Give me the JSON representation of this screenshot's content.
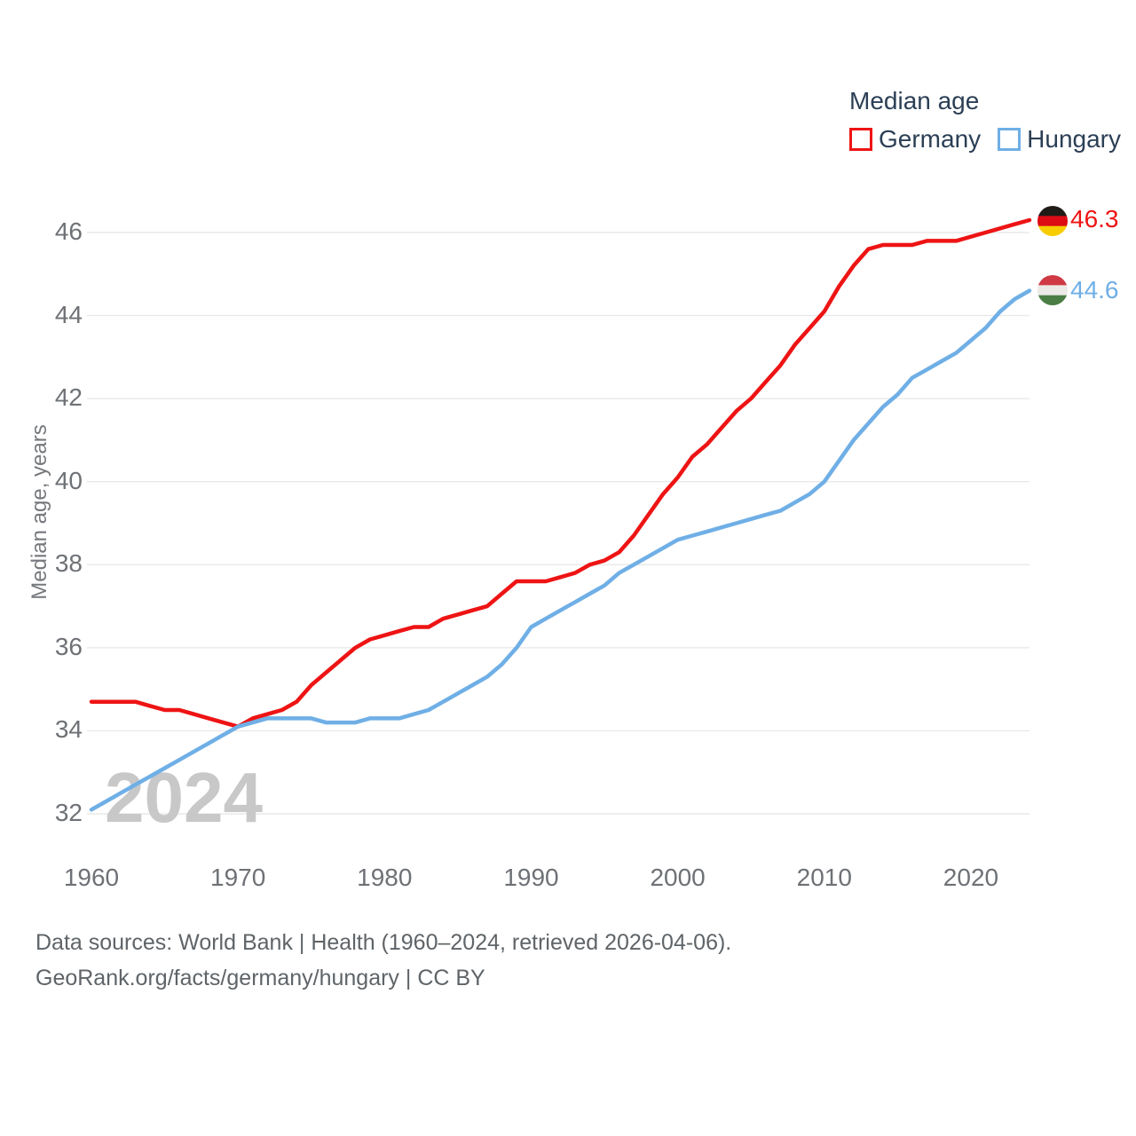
{
  "chart_data": {
    "type": "line",
    "title": "Median age",
    "ylabel": "Median age, years",
    "watermark": "2024",
    "grid": true,
    "grid_color": "#e9e9e9",
    "legend_position": "top-right",
    "xlim": [
      1960,
      2024
    ],
    "ylim": [
      32,
      46
    ],
    "x_ticks": [
      1960,
      1970,
      1980,
      1990,
      2000,
      2010,
      2020
    ],
    "y_ticks": [
      32,
      34,
      36,
      38,
      40,
      42,
      44,
      46
    ],
    "x": [
      1960,
      1961,
      1962,
      1963,
      1964,
      1965,
      1966,
      1967,
      1968,
      1969,
      1970,
      1971,
      1972,
      1973,
      1974,
      1975,
      1976,
      1977,
      1978,
      1979,
      1980,
      1981,
      1982,
      1983,
      1984,
      1985,
      1986,
      1987,
      1988,
      1989,
      1990,
      1991,
      1992,
      1993,
      1994,
      1995,
      1996,
      1997,
      1998,
      1999,
      2000,
      2001,
      2002,
      2003,
      2004,
      2005,
      2006,
      2007,
      2008,
      2009,
      2010,
      2011,
      2012,
      2013,
      2014,
      2015,
      2016,
      2017,
      2018,
      2019,
      2020,
      2021,
      2022,
      2023,
      2024
    ],
    "series": [
      {
        "name": "Germany",
        "color": "#ee1414",
        "values": [
          34.7,
          34.7,
          34.7,
          34.7,
          34.6,
          34.5,
          34.5,
          34.4,
          34.3,
          34.2,
          34.1,
          34.3,
          34.4,
          34.5,
          34.7,
          35.1,
          35.4,
          35.7,
          36.0,
          36.2,
          36.3,
          36.4,
          36.5,
          36.5,
          36.7,
          36.8,
          36.9,
          37.0,
          37.3,
          37.6,
          37.6,
          37.6,
          37.7,
          37.8,
          38.0,
          38.1,
          38.3,
          38.7,
          39.2,
          39.7,
          40.1,
          40.6,
          40.9,
          41.3,
          41.7,
          42.0,
          42.4,
          42.8,
          43.3,
          43.7,
          44.1,
          44.7,
          45.2,
          45.6,
          45.7,
          45.7,
          45.7,
          45.8,
          45.8,
          45.8,
          45.9,
          46.0,
          46.1,
          46.2,
          46.3
        ]
      },
      {
        "name": "Hungary",
        "color": "#6fafe6",
        "values": [
          32.1,
          32.3,
          32.5,
          32.7,
          32.9,
          33.1,
          33.3,
          33.5,
          33.7,
          33.9,
          34.1,
          34.2,
          34.3,
          34.3,
          34.3,
          34.3,
          34.2,
          34.2,
          34.2,
          34.3,
          34.3,
          34.3,
          34.4,
          34.5,
          34.7,
          34.9,
          35.1,
          35.3,
          35.6,
          36.0,
          36.5,
          36.7,
          36.9,
          37.1,
          37.3,
          37.5,
          37.8,
          38.0,
          38.2,
          38.4,
          38.6,
          38.7,
          38.8,
          38.9,
          39.0,
          39.1,
          39.2,
          39.3,
          39.5,
          39.7,
          40.0,
          40.5,
          41.0,
          41.4,
          41.8,
          42.1,
          42.5,
          42.7,
          42.9,
          43.1,
          43.4,
          43.7,
          44.1,
          44.4,
          44.6
        ]
      }
    ],
    "end_value_labels": {
      "germany": "46.3",
      "hungary": "44.6"
    },
    "flags": {
      "germany": {
        "stripes": [
          "#1f1b17",
          "#dd0b14",
          "#f8cd00"
        ]
      },
      "hungary": {
        "stripes": [
          "#cf3a45",
          "#eceae6",
          "#4a7e44"
        ]
      }
    }
  },
  "footer": {
    "line1": "Data sources: World Bank | Health (1960–2024, retrieved 2026-04-06).",
    "line2": "GeoRank.org/facts/germany/hungary | CC BY"
  }
}
